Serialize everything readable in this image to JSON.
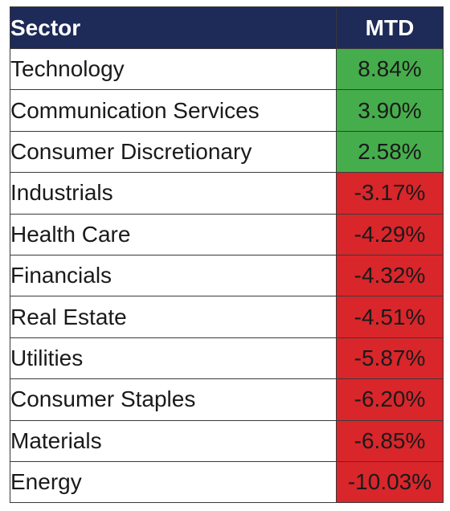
{
  "table": {
    "headers": {
      "sector": "Sector",
      "mtd": "MTD"
    },
    "rows": [
      {
        "sector": "Technology",
        "mtd": "8.84%"
      },
      {
        "sector": "Communication Services",
        "mtd": "3.90%"
      },
      {
        "sector": "Consumer Discretionary",
        "mtd": "2.58%"
      },
      {
        "sector": "Industrials",
        "mtd": "-3.17%"
      },
      {
        "sector": "Health Care",
        "mtd": "-4.29%"
      },
      {
        "sector": "Financials",
        "mtd": "-4.32%"
      },
      {
        "sector": "Real Estate",
        "mtd": "-4.51%"
      },
      {
        "sector": "Utilities",
        "mtd": "-5.87%"
      },
      {
        "sector": "Consumer Staples",
        "mtd": "-6.20%"
      },
      {
        "sector": "Materials",
        "mtd": "-6.85%"
      },
      {
        "sector": "Energy",
        "mtd": "-10.03%"
      }
    ]
  },
  "colors": {
    "header_bg": "#1e2a57",
    "positive": "#46ad4c",
    "negative": "#d8262b"
  },
  "chart_data": {
    "type": "table",
    "columns": [
      "Sector",
      "MTD"
    ],
    "categories": [
      "Technology",
      "Communication Services",
      "Consumer Discretionary",
      "Industrials",
      "Health Care",
      "Financials",
      "Real Estate",
      "Utilities",
      "Consumer Staples",
      "Materials",
      "Energy"
    ],
    "values": [
      8.84,
      3.9,
      2.58,
      -3.17,
      -4.29,
      -4.32,
      -4.51,
      -5.87,
      -6.2,
      -6.85,
      -10.03
    ]
  }
}
